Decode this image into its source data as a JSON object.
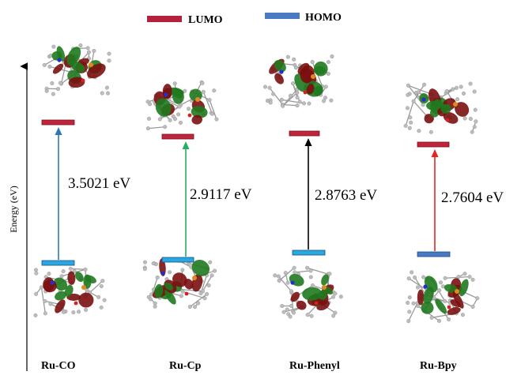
{
  "legend": {
    "lumo_label": "LUMO",
    "homo_label": "HOMO",
    "lumo_color": "#b3213a",
    "homo_color": "#4a7ac4"
  },
  "axis": {
    "y_label": "Energy (eV)"
  },
  "colors": {
    "homo_bar": "#29a8e0",
    "homo_bar_bpy": "#4a7ac4",
    "lumo_bar": "#c0263b",
    "orbital_green": "#1f7a1f",
    "orbital_red": "#7a1010"
  },
  "compounds": [
    {
      "name": "Ru-CO",
      "gap_label": "3.5021 eV",
      "gap_ev": 3.5021,
      "arrow_color": "#2f77b4"
    },
    {
      "name": "Ru-Cp",
      "gap_label": "2.9117 eV",
      "gap_ev": 2.9117,
      "arrow_color": "#27ae60"
    },
    {
      "name": "Ru-Phenyl",
      "gap_label": "2.8763 eV",
      "gap_ev": 2.8763,
      "arrow_color": "#000000"
    },
    {
      "name": "Ru-Bpy",
      "gap_label": "2.7604 eV",
      "gap_ev": 2.7604,
      "arrow_color": "#e8231f"
    }
  ]
}
